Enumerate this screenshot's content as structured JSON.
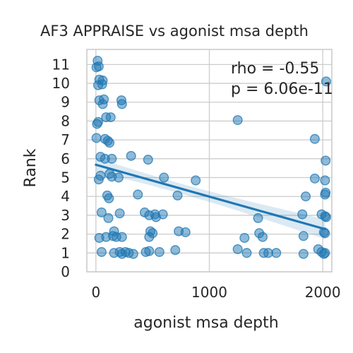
{
  "chart_data": {
    "type": "scatter",
    "title": "AF3 APPRAISE vs agonist msa depth",
    "xlabel": "agonist msa depth",
    "ylabel": "Rank",
    "xlim": [
      -80,
      2080
    ],
    "ylim": [
      0,
      11.8
    ],
    "xticks": [
      0,
      1000,
      2000
    ],
    "yticks": [
      0,
      1,
      2,
      3,
      4,
      5,
      6,
      7,
      8,
      9,
      10,
      11
    ],
    "grid": true,
    "point_color": "#1f77b4",
    "annotations": [
      "rho = -0.55",
      "p = 6.06e-11"
    ],
    "regression": {
      "slope": -0.00169,
      "intercept": 5.68,
      "x_range": [
        0,
        2020
      ]
    },
    "points": [
      {
        "x": 15,
        "y": 11.2
      },
      {
        "x": 25,
        "y": 10.9
      },
      {
        "x": 5,
        "y": 10.85
      },
      {
        "x": 30,
        "y": 10.2
      },
      {
        "x": 60,
        "y": 10.15
      },
      {
        "x": 55,
        "y": 9.95
      },
      {
        "x": 20,
        "y": 9.9
      },
      {
        "x": 30,
        "y": 9.1
      },
      {
        "x": 70,
        "y": 9.15
      },
      {
        "x": 60,
        "y": 8.9
      },
      {
        "x": 225,
        "y": 9.1
      },
      {
        "x": 230,
        "y": 8.9
      },
      {
        "x": 90,
        "y": 8.2
      },
      {
        "x": 130,
        "y": 8.2
      },
      {
        "x": 20,
        "y": 7.95
      },
      {
        "x": 10,
        "y": 7.85
      },
      {
        "x": 5,
        "y": 7.1
      },
      {
        "x": 80,
        "y": 7.05
      },
      {
        "x": 105,
        "y": 6.95
      },
      {
        "x": 120,
        "y": 6.85
      },
      {
        "x": 40,
        "y": 6.1
      },
      {
        "x": 80,
        "y": 6.0
      },
      {
        "x": 140,
        "y": 6.0
      },
      {
        "x": 310,
        "y": 6.15
      },
      {
        "x": 460,
        "y": 5.95
      },
      {
        "x": 40,
        "y": 5.1
      },
      {
        "x": 120,
        "y": 5.2
      },
      {
        "x": 140,
        "y": 5.05
      },
      {
        "x": 200,
        "y": 5.0
      },
      {
        "x": 600,
        "y": 5.0
      },
      {
        "x": 880,
        "y": 4.85
      },
      {
        "x": 25,
        "y": 4.9
      },
      {
        "x": 100,
        "y": 4.05
      },
      {
        "x": 115,
        "y": 3.9
      },
      {
        "x": 370,
        "y": 4.1
      },
      {
        "x": 720,
        "y": 4.05
      },
      {
        "x": 50,
        "y": 3.15
      },
      {
        "x": 210,
        "y": 3.1
      },
      {
        "x": 430,
        "y": 3.15
      },
      {
        "x": 470,
        "y": 3.0
      },
      {
        "x": 520,
        "y": 3.05
      },
      {
        "x": 590,
        "y": 3.05
      },
      {
        "x": 110,
        "y": 2.85
      },
      {
        "x": 530,
        "y": 2.9
      },
      {
        "x": 160,
        "y": 2.15
      },
      {
        "x": 480,
        "y": 2.15
      },
      {
        "x": 500,
        "y": 2.05
      },
      {
        "x": 730,
        "y": 2.15
      },
      {
        "x": 790,
        "y": 2.1
      },
      {
        "x": 30,
        "y": 1.8
      },
      {
        "x": 90,
        "y": 1.85
      },
      {
        "x": 150,
        "y": 1.9
      },
      {
        "x": 180,
        "y": 1.85
      },
      {
        "x": 230,
        "y": 1.85
      },
      {
        "x": 470,
        "y": 1.85
      },
      {
        "x": 50,
        "y": 1.05
      },
      {
        "x": 160,
        "y": 1.0
      },
      {
        "x": 210,
        "y": 1.05
      },
      {
        "x": 230,
        "y": 0.95
      },
      {
        "x": 260,
        "y": 1.05
      },
      {
        "x": 290,
        "y": 1.0
      },
      {
        "x": 330,
        "y": 0.95
      },
      {
        "x": 440,
        "y": 1.05
      },
      {
        "x": 470,
        "y": 1.1
      },
      {
        "x": 560,
        "y": 1.05
      },
      {
        "x": 700,
        "y": 1.15
      },
      {
        "x": 1250,
        "y": 8.05
      },
      {
        "x": 1310,
        "y": 1.8
      },
      {
        "x": 1250,
        "y": 1.2
      },
      {
        "x": 1330,
        "y": 1.0
      },
      {
        "x": 1430,
        "y": 2.85
      },
      {
        "x": 1440,
        "y": 2.05
      },
      {
        "x": 1470,
        "y": 1.85
      },
      {
        "x": 1480,
        "y": 1.0
      },
      {
        "x": 1520,
        "y": 1.0
      },
      {
        "x": 1590,
        "y": 1.0
      },
      {
        "x": 1930,
        "y": 7.05
      },
      {
        "x": 1930,
        "y": 4.95
      },
      {
        "x": 1850,
        "y": 4.0
      },
      {
        "x": 1820,
        "y": 3.05
      },
      {
        "x": 1830,
        "y": 1.9
      },
      {
        "x": 1830,
        "y": 0.95
      },
      {
        "x": 1960,
        "y": 1.2
      },
      {
        "x": 1990,
        "y": 1.05
      },
      {
        "x": 2010,
        "y": 0.95
      },
      {
        "x": 2020,
        "y": 1.0
      },
      {
        "x": 2010,
        "y": 2.1
      },
      {
        "x": 2020,
        "y": 2.05
      },
      {
        "x": 1990,
        "y": 3.05
      },
      {
        "x": 2020,
        "y": 2.95
      },
      {
        "x": 2030,
        "y": 2.9
      },
      {
        "x": 2020,
        "y": 4.1
      },
      {
        "x": 2025,
        "y": 4.2
      },
      {
        "x": 2020,
        "y": 4.85
      },
      {
        "x": 2025,
        "y": 5.9
      },
      {
        "x": 2030,
        "y": 10.1
      }
    ]
  }
}
